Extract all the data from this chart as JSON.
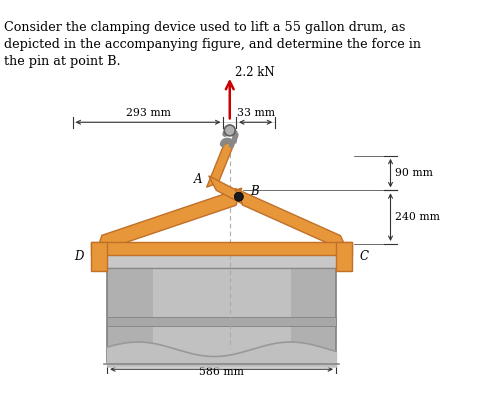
{
  "text_title": "Consider the clamping device used to lift a 55 gallon drum, as\ndepicted in the accompanying figure, and determine the force in\nthe pin at point B.",
  "label_force": "2.2 kN",
  "label_293": "293 mm",
  "label_33": "33 mm",
  "label_90": "90 mm",
  "label_240": "240 mm",
  "label_586": "586 mm",
  "label_A": "A",
  "label_B": "B",
  "label_D": "D",
  "label_C": "C",
  "orange": "#E8963A",
  "orange_edge": "#C07028",
  "orange_dark": "#C07828",
  "drum_gray": "#B0B0B0",
  "drum_light": "#D0D0D0",
  "drum_dark": "#909090",
  "drum_rim": "#C0C0C0",
  "hook_gray": "#909090",
  "bg_color": "#FFFFFF",
  "arrow_color": "#CC0000",
  "pin_color": "#1A1A1A",
  "dim_color": "#333333",
  "dash_color": "#AAAAAA",
  "text_color": "#000000"
}
